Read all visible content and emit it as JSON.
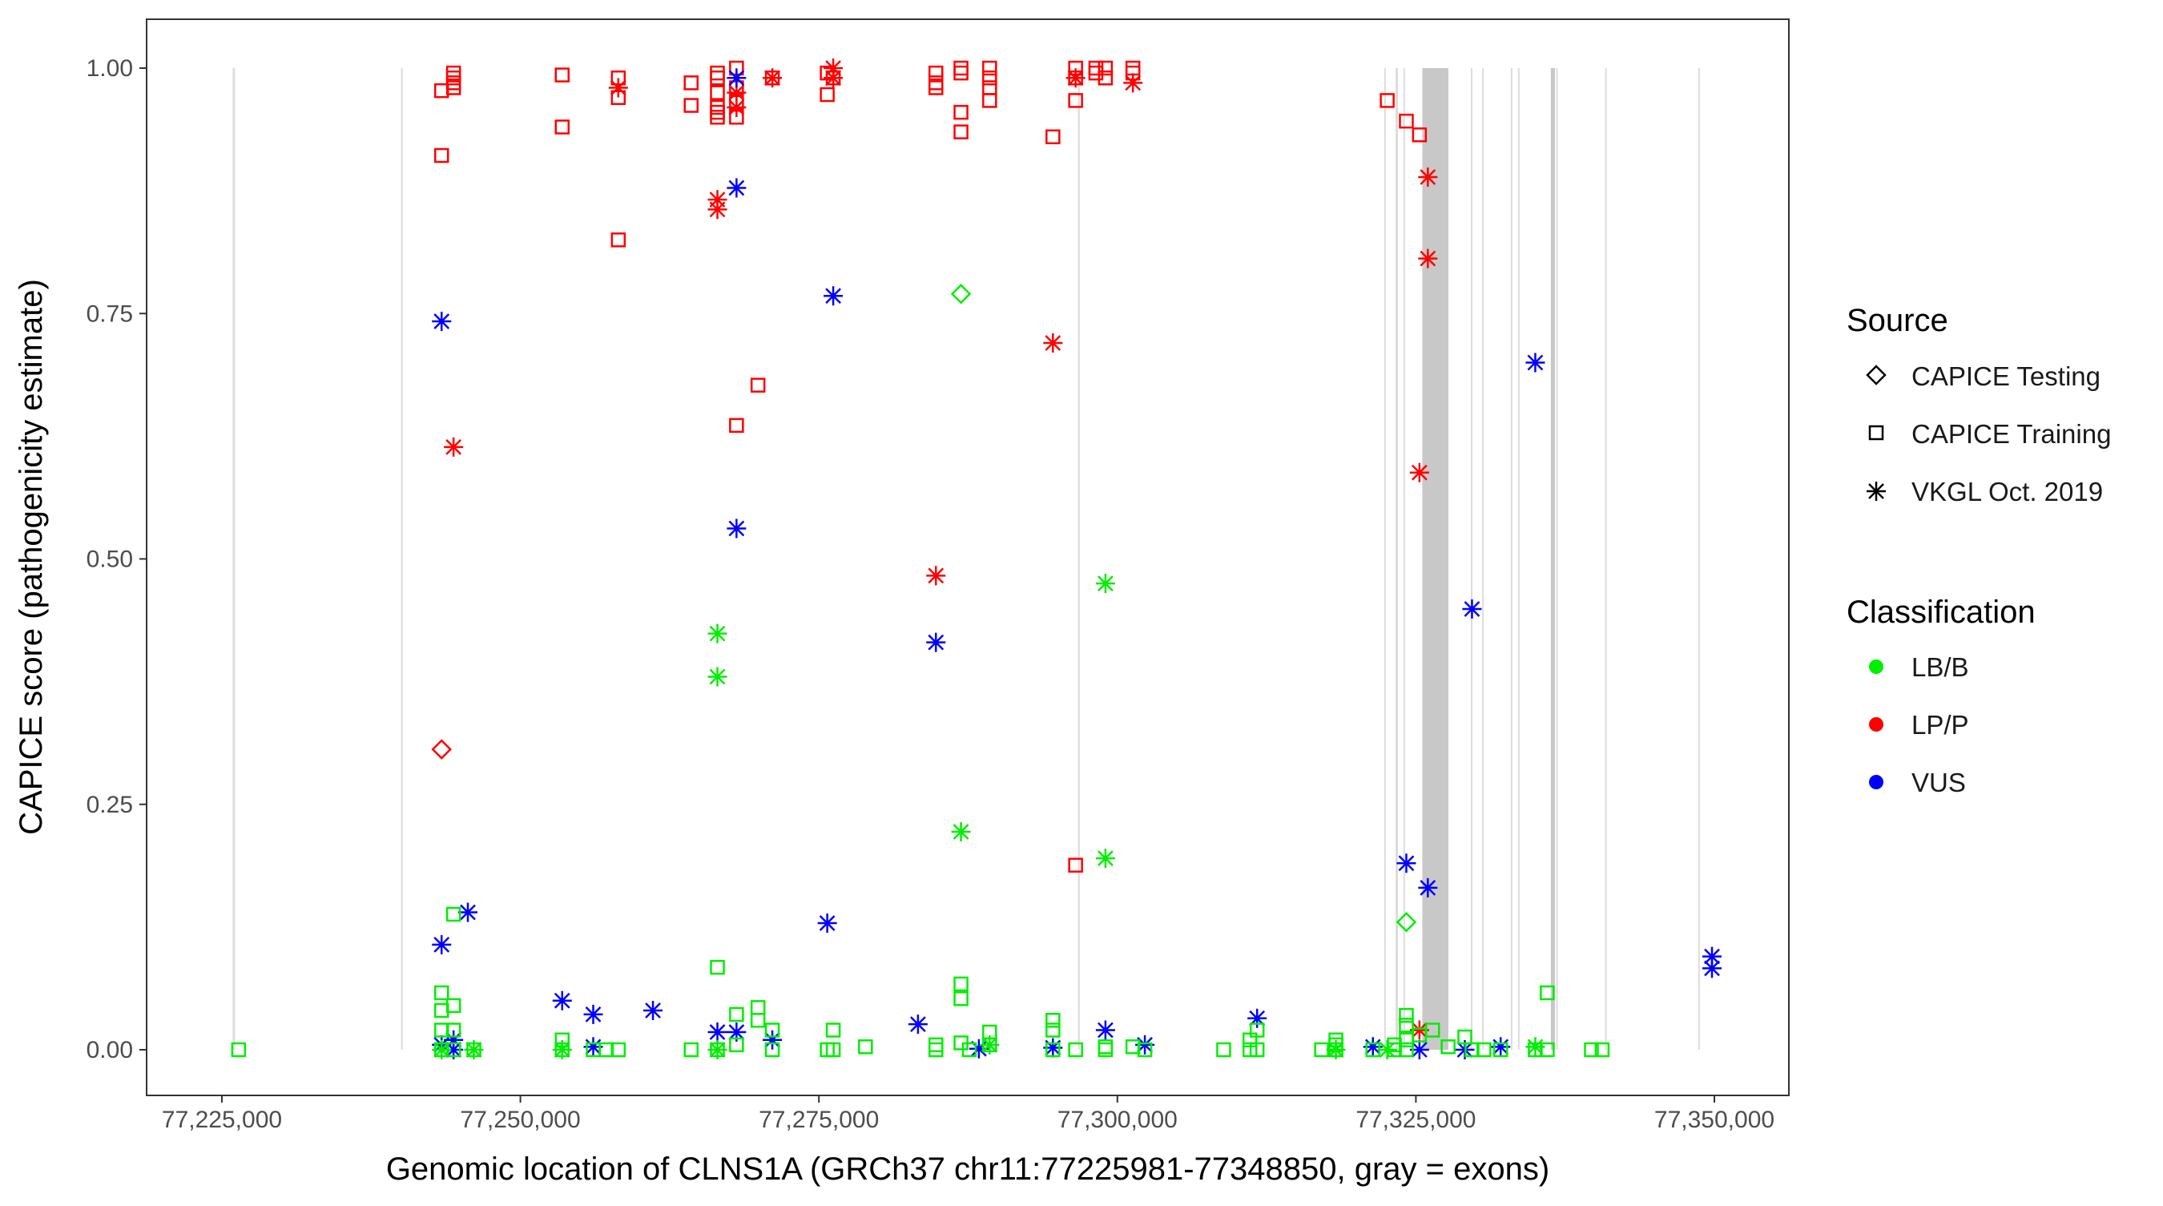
{
  "chart_data": {
    "type": "scatter",
    "xlabel": "Genomic location of CLNS1A (GRCh37 chr11:77225981-77348850, gray = exons)",
    "ylabel": "CAPICE score (pathogenicity estimate)",
    "xlim": [
      77220000,
      77355000
    ],
    "ylim": [
      -0.045,
      1.045
    ],
    "x_ticks": [
      77225000,
      77250000,
      77275000,
      77300000,
      77325000,
      77350000
    ],
    "x_tick_labels": [
      "77,225,000",
      "77,250,000",
      "77,275,000",
      "77,300,000",
      "77,325,000",
      "77,350,000"
    ],
    "y_ticks": [
      0,
      0.25,
      0.5,
      0.75,
      1.0
    ],
    "y_tick_labels": [
      "0.00",
      "0.25",
      "0.50",
      "0.75",
      "1.00"
    ],
    "grid": false,
    "legend_placement": "right",
    "legend": {
      "source_title": "Source",
      "sources": [
        {
          "code": "T",
          "label": "CAPICE Testing",
          "shape": "diamond"
        },
        {
          "code": "R",
          "label": "CAPICE Training",
          "shape": "square"
        },
        {
          "code": "V",
          "label": "VKGL Oct. 2019",
          "shape": "asterisk"
        }
      ],
      "class_title": "Classification",
      "classes": [
        {
          "code": "B",
          "label": "LB/B",
          "color": "#00ee00"
        },
        {
          "code": "P",
          "label": "LP/P",
          "color": "#ff0000"
        },
        {
          "code": "U",
          "label": "VUS",
          "color": "#0000ff"
        }
      ]
    },
    "exons": [
      [
        77225900,
        77226100
      ],
      [
        77240000,
        77240150
      ],
      [
        77296700,
        77296850
      ],
      [
        77322350,
        77322450
      ],
      [
        77323300,
        77323500
      ],
      [
        77323950,
        77324050
      ],
      [
        77325540,
        77327720
      ],
      [
        77329600,
        77329700
      ],
      [
        77330550,
        77330650
      ],
      [
        77332950,
        77333050
      ],
      [
        77333550,
        77333650
      ],
      [
        77336300,
        77336650
      ],
      [
        77336750,
        77336850
      ],
      [
        77340850,
        77340950
      ],
      [
        77348650,
        77348750
      ]
    ],
    "points": [
      [
        77243400,
        0.977,
        "R",
        "P"
      ],
      [
        77243400,
        0.911,
        "R",
        "P"
      ],
      [
        77244400,
        0.995,
        "R",
        "P"
      ],
      [
        77244400,
        0.99,
        "R",
        "P"
      ],
      [
        77244400,
        0.985,
        "R",
        "P"
      ],
      [
        77244400,
        0.98,
        "R",
        "P"
      ],
      [
        77253500,
        0.993,
        "R",
        "P"
      ],
      [
        77253500,
        0.94,
        "R",
        "P"
      ],
      [
        77258200,
        0.99,
        "R",
        "P"
      ],
      [
        77258200,
        0.97,
        "R",
        "P"
      ],
      [
        77258200,
        0.825,
        "R",
        "P"
      ],
      [
        77264300,
        0.985,
        "R",
        "P"
      ],
      [
        77264300,
        0.962,
        "R",
        "P"
      ],
      [
        77266500,
        0.995,
        "R",
        "P"
      ],
      [
        77266500,
        0.99,
        "R",
        "P"
      ],
      [
        77266500,
        0.975,
        "R",
        "P"
      ],
      [
        77266500,
        0.96,
        "R",
        "P"
      ],
      [
        77266500,
        0.955,
        "R",
        "P"
      ],
      [
        77266500,
        0.95,
        "R",
        "P"
      ],
      [
        77268100,
        1.0,
        "R",
        "P"
      ],
      [
        77268100,
        0.98,
        "R",
        "P"
      ],
      [
        77268100,
        0.965,
        "R",
        "P"
      ],
      [
        77268100,
        0.95,
        "R",
        "P"
      ],
      [
        77268100,
        0.636,
        "R",
        "P"
      ],
      [
        77269900,
        0.677,
        "R",
        "P"
      ],
      [
        77271100,
        0.99,
        "R",
        "P"
      ],
      [
        77275700,
        0.995,
        "R",
        "P"
      ],
      [
        77275700,
        0.973,
        "R",
        "P"
      ],
      [
        77276200,
        0.99,
        "R",
        "P"
      ],
      [
        77284800,
        0.995,
        "R",
        "P"
      ],
      [
        77284800,
        0.985,
        "R",
        "P"
      ],
      [
        77284800,
        0.98,
        "R",
        "P"
      ],
      [
        77286900,
        1.0,
        "R",
        "P"
      ],
      [
        77286900,
        0.995,
        "R",
        "P"
      ],
      [
        77286900,
        0.955,
        "R",
        "P"
      ],
      [
        77286900,
        0.935,
        "R",
        "P"
      ],
      [
        77289300,
        1.0,
        "R",
        "P"
      ],
      [
        77289300,
        0.99,
        "R",
        "P"
      ],
      [
        77289300,
        0.98,
        "R",
        "P"
      ],
      [
        77289300,
        0.967,
        "R",
        "P"
      ],
      [
        77294600,
        0.93,
        "R",
        "P"
      ],
      [
        77296500,
        1.0,
        "R",
        "P"
      ],
      [
        77296500,
        0.99,
        "R",
        "P"
      ],
      [
        77296500,
        0.967,
        "R",
        "P"
      ],
      [
        77296500,
        0.188,
        "R",
        "P"
      ],
      [
        77298200,
        1.0,
        "R",
        "P"
      ],
      [
        77298200,
        0.995,
        "R",
        "P"
      ],
      [
        77299000,
        1.0,
        "R",
        "P"
      ],
      [
        77299000,
        0.99,
        "R",
        "P"
      ],
      [
        77301300,
        1.0,
        "R",
        "P"
      ],
      [
        77301300,
        0.995,
        "R",
        "P"
      ],
      [
        77322600,
        0.967,
        "R",
        "P"
      ],
      [
        77324200,
        0.946,
        "R",
        "P"
      ],
      [
        77325300,
        0.932,
        "R",
        "P"
      ],
      [
        77244400,
        0.614,
        "V",
        "P"
      ],
      [
        77258200,
        0.98,
        "V",
        "P"
      ],
      [
        77266500,
        0.866,
        "V",
        "P"
      ],
      [
        77266500,
        0.856,
        "V",
        "P"
      ],
      [
        77268100,
        0.975,
        "V",
        "P"
      ],
      [
        77268100,
        0.96,
        "V",
        "P"
      ],
      [
        77271100,
        0.99,
        "V",
        "P"
      ],
      [
        77276200,
        1.0,
        "V",
        "P"
      ],
      [
        77276200,
        0.99,
        "V",
        "P"
      ],
      [
        77284800,
        0.483,
        "V",
        "P"
      ],
      [
        77294600,
        0.72,
        "V",
        "P"
      ],
      [
        77296500,
        0.99,
        "V",
        "P"
      ],
      [
        77301300,
        0.985,
        "V",
        "P"
      ],
      [
        77325300,
        0.588,
        "V",
        "P"
      ],
      [
        77326000,
        0.889,
        "V",
        "P"
      ],
      [
        77326000,
        0.806,
        "V",
        "P"
      ],
      [
        77325300,
        0.02,
        "V",
        "P"
      ],
      [
        77243400,
        0.306,
        "T",
        "P"
      ],
      [
        77243400,
        0.742,
        "V",
        "U"
      ],
      [
        77243400,
        0.107,
        "V",
        "U"
      ],
      [
        77243400,
        0.005,
        "V",
        "U"
      ],
      [
        77244400,
        0.01,
        "V",
        "U"
      ],
      [
        77244400,
        0.0,
        "V",
        "U"
      ],
      [
        77245600,
        0.14,
        "V",
        "U"
      ],
      [
        77253500,
        0.05,
        "V",
        "U"
      ],
      [
        77256100,
        0.036,
        "V",
        "U"
      ],
      [
        77256100,
        0.003,
        "V",
        "U"
      ],
      [
        77261100,
        0.04,
        "V",
        "U"
      ],
      [
        77266500,
        0.018,
        "V",
        "U"
      ],
      [
        77268100,
        0.878,
        "V",
        "U"
      ],
      [
        77268100,
        0.531,
        "V",
        "U"
      ],
      [
        77268100,
        0.99,
        "V",
        "U"
      ],
      [
        77268100,
        0.018,
        "V",
        "U"
      ],
      [
        77271100,
        0.01,
        "V",
        "U"
      ],
      [
        77275700,
        0.129,
        "V",
        "U"
      ],
      [
        77276200,
        0.768,
        "V",
        "U"
      ],
      [
        77283300,
        0.026,
        "V",
        "U"
      ],
      [
        77284800,
        0.415,
        "V",
        "U"
      ],
      [
        77288400,
        0.001,
        "V",
        "U"
      ],
      [
        77294600,
        0.002,
        "V",
        "U"
      ],
      [
        77299000,
        0.02,
        "V",
        "U"
      ],
      [
        77302300,
        0.005,
        "V",
        "U"
      ],
      [
        77311700,
        0.032,
        "V",
        "U"
      ],
      [
        77321400,
        0.003,
        "V",
        "U"
      ],
      [
        77324200,
        0.19,
        "V",
        "U"
      ],
      [
        77325300,
        0.0,
        "V",
        "U"
      ],
      [
        77326000,
        0.165,
        "V",
        "U"
      ],
      [
        77329100,
        0.0,
        "V",
        "U"
      ],
      [
        77329700,
        0.449,
        "V",
        "U"
      ],
      [
        77332100,
        0.003,
        "V",
        "U"
      ],
      [
        77335000,
        0.7,
        "V",
        "U"
      ],
      [
        77349800,
        0.095,
        "V",
        "U"
      ],
      [
        77349800,
        0.083,
        "V",
        "U"
      ],
      [
        77243400,
        0.0,
        "V",
        "B"
      ],
      [
        77246100,
        0.0,
        "V",
        "B"
      ],
      [
        77253500,
        0.0,
        "V",
        "B"
      ],
      [
        77266500,
        0.424,
        "V",
        "B"
      ],
      [
        77266500,
        0.38,
        "V",
        "B"
      ],
      [
        77266500,
        0.0,
        "V",
        "B"
      ],
      [
        77286900,
        0.222,
        "V",
        "B"
      ],
      [
        77299000,
        0.475,
        "V",
        "B"
      ],
      [
        77299000,
        0.195,
        "V",
        "B"
      ],
      [
        77289300,
        0.005,
        "V",
        "B"
      ],
      [
        77318300,
        0.0,
        "V",
        "B"
      ],
      [
        77322600,
        0.0,
        "V",
        "B"
      ],
      [
        77335000,
        0.003,
        "V",
        "B"
      ],
      [
        77286900,
        0.77,
        "T",
        "B"
      ],
      [
        77324200,
        0.13,
        "T",
        "B"
      ],
      [
        77226400,
        0.0,
        "R",
        "B"
      ],
      [
        77243400,
        0.058,
        "R",
        "B"
      ],
      [
        77243400,
        0.04,
        "R",
        "B"
      ],
      [
        77243400,
        0.02,
        "R",
        "B"
      ],
      [
        77243400,
        0.0,
        "R",
        "B"
      ],
      [
        77244400,
        0.138,
        "R",
        "B"
      ],
      [
        77244400,
        0.045,
        "R",
        "B"
      ],
      [
        77244400,
        0.02,
        "R",
        "B"
      ],
      [
        77244400,
        0.0,
        "R",
        "B"
      ],
      [
        77246100,
        0.0,
        "R",
        "B"
      ],
      [
        77253500,
        0.01,
        "R",
        "B"
      ],
      [
        77253500,
        0.0,
        "R",
        "B"
      ],
      [
        77256100,
        0.0,
        "R",
        "B"
      ],
      [
        77257200,
        0.0,
        "R",
        "B"
      ],
      [
        77258200,
        0.0,
        "R",
        "B"
      ],
      [
        77264300,
        0.0,
        "R",
        "B"
      ],
      [
        77266500,
        0.084,
        "R",
        "B"
      ],
      [
        77266500,
        0.0,
        "R",
        "B"
      ],
      [
        77268100,
        0.036,
        "R",
        "B"
      ],
      [
        77268100,
        0.005,
        "R",
        "B"
      ],
      [
        77269900,
        0.043,
        "R",
        "B"
      ],
      [
        77269900,
        0.03,
        "R",
        "B"
      ],
      [
        77271100,
        0.02,
        "R",
        "B"
      ],
      [
        77271100,
        0.0,
        "R",
        "B"
      ],
      [
        77275700,
        0.0,
        "R",
        "B"
      ],
      [
        77276200,
        0.02,
        "R",
        "B"
      ],
      [
        77276200,
        0.0,
        "R",
        "B"
      ],
      [
        77278900,
        0.003,
        "R",
        "B"
      ],
      [
        77284800,
        0.005,
        "R",
        "B"
      ],
      [
        77284800,
        0.0,
        "R",
        "B"
      ],
      [
        77286900,
        0.067,
        "R",
        "B"
      ],
      [
        77286900,
        0.052,
        "R",
        "B"
      ],
      [
        77286900,
        0.007,
        "R",
        "B"
      ],
      [
        77287600,
        0.0,
        "R",
        "B"
      ],
      [
        77289300,
        0.018,
        "R",
        "B"
      ],
      [
        77289300,
        0.005,
        "R",
        "B"
      ],
      [
        77294600,
        0.03,
        "R",
        "B"
      ],
      [
        77294600,
        0.02,
        "R",
        "B"
      ],
      [
        77294600,
        0.0,
        "R",
        "B"
      ],
      [
        77296500,
        0.0,
        "R",
        "B"
      ],
      [
        77299000,
        0.0,
        "R",
        "B"
      ],
      [
        77299000,
        0.003,
        "R",
        "B"
      ],
      [
        77301300,
        0.003,
        "R",
        "B"
      ],
      [
        77302300,
        0.0,
        "R",
        "B"
      ],
      [
        77308900,
        0.0,
        "R",
        "B"
      ],
      [
        77311100,
        0.01,
        "R",
        "B"
      ],
      [
        77311100,
        0.0,
        "R",
        "B"
      ],
      [
        77311700,
        0.02,
        "R",
        "B"
      ],
      [
        77311700,
        0.0,
        "R",
        "B"
      ],
      [
        77317100,
        0.0,
        "R",
        "B"
      ],
      [
        77318300,
        0.01,
        "R",
        "B"
      ],
      [
        77318300,
        0.005,
        "R",
        "B"
      ],
      [
        77318300,
        0.0,
        "R",
        "B"
      ],
      [
        77321400,
        0.0,
        "R",
        "B"
      ],
      [
        77323200,
        0.005,
        "R",
        "B"
      ],
      [
        77323200,
        0.0,
        "R",
        "B"
      ],
      [
        77324200,
        0.035,
        "R",
        "B"
      ],
      [
        77324200,
        0.025,
        "R",
        "B"
      ],
      [
        77324200,
        0.01,
        "R",
        "B"
      ],
      [
        77324200,
        0.0,
        "R",
        "B"
      ],
      [
        77325300,
        0.015,
        "R",
        "B"
      ],
      [
        77326400,
        0.02,
        "R",
        "B"
      ],
      [
        77327700,
        0.003,
        "R",
        "B"
      ],
      [
        77329100,
        0.013,
        "R",
        "B"
      ],
      [
        77329700,
        0.0,
        "R",
        "B"
      ],
      [
        77330700,
        0.0,
        "R",
        "B"
      ],
      [
        77332100,
        0.0,
        "R",
        "B"
      ],
      [
        77335000,
        0.0,
        "R",
        "B"
      ],
      [
        77336000,
        0.058,
        "R",
        "B"
      ],
      [
        77336000,
        0.0,
        "R",
        "B"
      ],
      [
        77339700,
        0.0,
        "R",
        "B"
      ],
      [
        77340600,
        0.0,
        "R",
        "B"
      ]
    ]
  }
}
